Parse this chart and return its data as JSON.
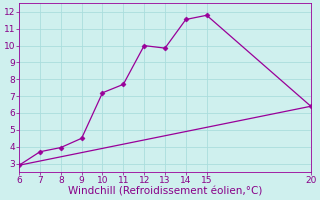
{
  "xlabel": "Windchill (Refroidissement éolien,°C)",
  "line1_x": [
    6,
    7,
    8,
    9,
    10,
    11,
    12,
    13,
    14,
    15,
    20
  ],
  "line1_y": [
    2.9,
    3.7,
    3.95,
    4.5,
    7.2,
    7.7,
    10.0,
    9.85,
    11.55,
    11.8,
    6.4
  ],
  "line2_x": [
    6,
    20
  ],
  "line2_y": [
    2.9,
    6.4
  ],
  "line_color": "#990099",
  "marker": "D",
  "marker_size": 2.5,
  "xlim": [
    6,
    20
  ],
  "ylim": [
    2.5,
    12.5
  ],
  "xticks": [
    6,
    7,
    8,
    9,
    10,
    11,
    12,
    13,
    14,
    15,
    20
  ],
  "yticks": [
    3,
    4,
    5,
    6,
    7,
    8,
    9,
    10,
    11,
    12
  ],
  "bg_color": "#cff0ee",
  "grid_color": "#aadddd",
  "tick_color": "#880088",
  "label_color": "#880088",
  "tick_fontsize": 6.5,
  "xlabel_fontsize": 7.5,
  "linewidth": 0.9
}
